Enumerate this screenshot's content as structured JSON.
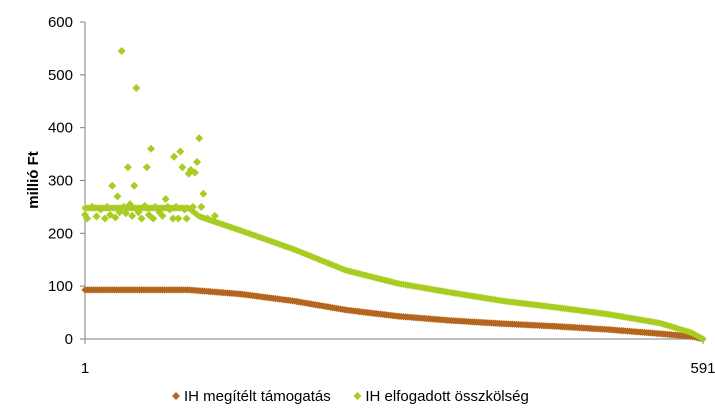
{
  "chart_data": {
    "type": "scatter",
    "title": "",
    "xlabel": "",
    "ylabel": "millió Ft",
    "xlim": [
      1,
      591
    ],
    "ylim": [
      0,
      600
    ],
    "x_tick_labels": [
      "1",
      "591"
    ],
    "y_tick_labels": [
      "0",
      "100",
      "200",
      "300",
      "400",
      "500",
      "600"
    ],
    "grid": false,
    "legend_position": "bottom",
    "marker": "diamond",
    "series": [
      {
        "name": "IH megítélt támogatás",
        "color": "#b5651d",
        "curve": [
          [
            1,
            93
          ],
          [
            100,
            93
          ],
          [
            150,
            85
          ],
          [
            200,
            72
          ],
          [
            250,
            55
          ],
          [
            300,
            43
          ],
          [
            350,
            35
          ],
          [
            400,
            29
          ],
          [
            450,
            24
          ],
          [
            500,
            18
          ],
          [
            550,
            10
          ],
          [
            580,
            5
          ],
          [
            591,
            0
          ]
        ]
      },
      {
        "name": "IH elfogadott összkölség",
        "color": "#a8cc22",
        "curve": [
          [
            1,
            248
          ],
          [
            100,
            248
          ],
          [
            110,
            232
          ],
          [
            150,
            205
          ],
          [
            200,
            170
          ],
          [
            250,
            130
          ],
          [
            300,
            105
          ],
          [
            350,
            88
          ],
          [
            400,
            72
          ],
          [
            450,
            60
          ],
          [
            500,
            47
          ],
          [
            550,
            30
          ],
          [
            580,
            12
          ],
          [
            591,
            0
          ]
        ],
        "outliers": [
          [
            1,
            235
          ],
          [
            3,
            228
          ],
          [
            8,
            250
          ],
          [
            12,
            232
          ],
          [
            16,
            245
          ],
          [
            20,
            228
          ],
          [
            22,
            250
          ],
          [
            25,
            235
          ],
          [
            27,
            290
          ],
          [
            30,
            230
          ],
          [
            32,
            270
          ],
          [
            34,
            240
          ],
          [
            36,
            545
          ],
          [
            38,
            250
          ],
          [
            40,
            238
          ],
          [
            42,
            325
          ],
          [
            44,
            255
          ],
          [
            46,
            233
          ],
          [
            48,
            290
          ],
          [
            50,
            475
          ],
          [
            52,
            240
          ],
          [
            55,
            228
          ],
          [
            58,
            252
          ],
          [
            60,
            325
          ],
          [
            62,
            235
          ],
          [
            64,
            360
          ],
          [
            66,
            228
          ],
          [
            68,
            250
          ],
          [
            72,
            240
          ],
          [
            75,
            233
          ],
          [
            78,
            265
          ],
          [
            80,
            250
          ],
          [
            82,
            245
          ],
          [
            85,
            228
          ],
          [
            86,
            345
          ],
          [
            88,
            250
          ],
          [
            90,
            228
          ],
          [
            92,
            355
          ],
          [
            94,
            325
          ],
          [
            96,
            245
          ],
          [
            98,
            228
          ],
          [
            100,
            313
          ],
          [
            102,
            320
          ],
          [
            104,
            250
          ],
          [
            106,
            315
          ],
          [
            108,
            335
          ],
          [
            110,
            380
          ],
          [
            112,
            250
          ],
          [
            114,
            275
          ],
          [
            118,
            228
          ],
          [
            125,
            233
          ]
        ]
      }
    ]
  }
}
